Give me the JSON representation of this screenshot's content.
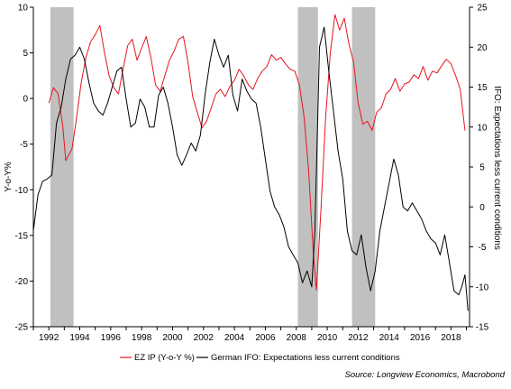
{
  "chart_data": {
    "type": "line",
    "title": "",
    "xlabel": "",
    "x_ticks": [
      "1992",
      "1994",
      "1996",
      "1998",
      "2000",
      "2002",
      "2004",
      "2006",
      "2008",
      "2010",
      "2012",
      "2014",
      "2016",
      "2018"
    ],
    "xlim": [
      1991.0,
      2019.2
    ],
    "left_axis": {
      "label": "Y-o-Y%",
      "ylim": [
        -25,
        10
      ],
      "ticks": [
        -25,
        -20,
        -15,
        -10,
        -5,
        0,
        5,
        10
      ]
    },
    "right_axis": {
      "label": "IFO: Expectations less current conditions",
      "ylim": [
        -15,
        25
      ],
      "ticks": [
        -15,
        -10,
        -5,
        0,
        5,
        10,
        15,
        20,
        25
      ]
    },
    "recessions": [
      [
        1992.1,
        1993.6
      ],
      [
        2008.1,
        2009.4
      ],
      [
        2011.6,
        2013.1
      ]
    ],
    "series": [
      {
        "name": "EZ IP (Y-o-Y %)",
        "axis": "left",
        "color": "#e8141c",
        "x": [
          1992.0,
          1992.3,
          1992.6,
          1992.9,
          1993.1,
          1993.5,
          1993.8,
          1994.1,
          1994.4,
          1994.7,
          1995.0,
          1995.3,
          1995.6,
          1995.9,
          1996.2,
          1996.5,
          1996.8,
          1997.1,
          1997.4,
          1997.7,
          1998.0,
          1998.3,
          1998.6,
          1998.9,
          1999.2,
          1999.5,
          1999.8,
          2000.1,
          2000.4,
          2000.7,
          2001.0,
          2001.3,
          2001.6,
          2001.9,
          2002.2,
          2002.5,
          2002.8,
          2003.1,
          2003.4,
          2003.7,
          2004.0,
          2004.3,
          2004.6,
          2004.9,
          2005.2,
          2005.5,
          2005.8,
          2006.1,
          2006.4,
          2006.7,
          2007.0,
          2007.3,
          2007.6,
          2007.9,
          2008.2,
          2008.5,
          2008.8,
          2009.1,
          2009.3,
          2009.6,
          2009.9,
          2010.2,
          2010.5,
          2010.8,
          2011.1,
          2011.4,
          2011.7,
          2012.0,
          2012.3,
          2012.6,
          2012.9,
          2013.2,
          2013.5,
          2013.8,
          2014.1,
          2014.4,
          2014.7,
          2015.0,
          2015.3,
          2015.6,
          2015.9,
          2016.2,
          2016.5,
          2016.8,
          2017.1,
          2017.4,
          2017.7,
          2018.0,
          2018.3,
          2018.6,
          2018.9
        ],
        "values": [
          -0.5,
          1.2,
          0.5,
          -3.0,
          -6.8,
          -5.5,
          -2.0,
          1.8,
          4.5,
          6.2,
          7.0,
          8.0,
          5.0,
          2.5,
          1.2,
          0.5,
          3.2,
          5.8,
          6.5,
          4.2,
          5.5,
          6.8,
          4.5,
          1.5,
          0.8,
          2.5,
          4.2,
          5.2,
          6.5,
          6.8,
          4.0,
          0.2,
          -1.5,
          -3.2,
          -2.5,
          -1.0,
          0.5,
          1.0,
          0.2,
          1.3,
          2.0,
          3.2,
          2.5,
          1.5,
          1.0,
          2.2,
          3.0,
          3.5,
          4.8,
          4.2,
          4.5,
          3.8,
          3.2,
          3.0,
          1.5,
          -2.0,
          -8.0,
          -17.0,
          -21.0,
          -12.0,
          -2.0,
          5.0,
          9.2,
          7.5,
          8.8,
          6.0,
          4.0,
          -0.5,
          -2.8,
          -2.5,
          -3.5,
          -1.5,
          -1.0,
          0.5,
          1.0,
          2.2,
          0.8,
          1.6,
          1.8,
          2.6,
          2.2,
          3.5,
          2.0,
          3.0,
          2.8,
          3.6,
          4.3,
          3.8,
          2.5,
          1.0,
          -3.5
        ]
      },
      {
        "name": "German IFO: Expectations less current conditions",
        "axis": "right",
        "color": "#000000",
        "x": [
          1991.0,
          1991.3,
          1991.6,
          1991.9,
          1992.2,
          1992.5,
          1992.8,
          1993.1,
          1993.4,
          1993.7,
          1994.0,
          1994.3,
          1994.6,
          1994.9,
          1995.2,
          1995.5,
          1995.8,
          1996.1,
          1996.4,
          1996.7,
          1997.0,
          1997.3,
          1997.6,
          1997.9,
          1998.2,
          1998.5,
          1998.8,
          1999.1,
          1999.4,
          1999.7,
          2000.0,
          2000.3,
          2000.6,
          2000.9,
          2001.2,
          2001.5,
          2001.8,
          2002.1,
          2002.4,
          2002.7,
          2003.0,
          2003.3,
          2003.6,
          2003.9,
          2004.2,
          2004.5,
          2004.8,
          2005.1,
          2005.4,
          2005.7,
          2006.0,
          2006.3,
          2006.6,
          2006.9,
          2007.2,
          2007.5,
          2007.8,
          2008.1,
          2008.4,
          2008.7,
          2009.0,
          2009.2,
          2009.5,
          2009.8,
          2010.1,
          2010.4,
          2010.7,
          2011.0,
          2011.3,
          2011.6,
          2011.9,
          2012.2,
          2012.5,
          2012.8,
          2013.1,
          2013.4,
          2013.7,
          2014.0,
          2014.3,
          2014.6,
          2014.9,
          2015.2,
          2015.5,
          2015.8,
          2016.1,
          2016.4,
          2016.7,
          2017.0,
          2017.3,
          2017.6,
          2017.9,
          2018.2,
          2018.5,
          2018.7,
          2018.9,
          2019.1
        ],
        "values": [
          -3.0,
          1.5,
          3.2,
          3.5,
          4.0,
          10.5,
          12.5,
          16.0,
          18.5,
          19.0,
          20.0,
          18.5,
          15.5,
          13.0,
          12.0,
          11.5,
          13.0,
          15.0,
          17.0,
          17.5,
          13.5,
          10.0,
          10.5,
          13.5,
          12.5,
          10.0,
          10.0,
          14.0,
          15.0,
          13.0,
          10.0,
          6.5,
          5.2,
          6.5,
          8.0,
          7.0,
          9.0,
          14.0,
          18.0,
          21.0,
          19.0,
          17.5,
          19.0,
          14.0,
          12.0,
          16.0,
          14.5,
          13.5,
          13.0,
          10.0,
          6.0,
          2.0,
          0.0,
          -1.0,
          -2.5,
          -5.0,
          -6.0,
          -7.0,
          -9.5,
          -8.0,
          -10.0,
          -3.0,
          20.0,
          22.5,
          17.0,
          12.0,
          7.0,
          3.5,
          -3.0,
          -5.5,
          -6.0,
          -3.5,
          -7.5,
          -10.5,
          -8.0,
          -3.0,
          0.0,
          3.0,
          6.0,
          4.0,
          0.0,
          -0.5,
          0.5,
          -0.5,
          -1.5,
          -3.0,
          -4.0,
          -4.5,
          -6.0,
          -3.5,
          -7.0,
          -10.5,
          -11.0,
          -10.0,
          -8.5,
          -13.0
        ]
      }
    ],
    "legend": {
      "position": "bottom-center",
      "entries": [
        "EZ IP (Y-o-Y %)",
        "German IFO: Expectations less current conditions"
      ]
    },
    "grid": false,
    "source": "Source: Longview Economics, Macrobond"
  },
  "colors": {
    "recession": "#c0c0c0",
    "ez_ip": "#e8141c",
    "ifo": "#000000"
  }
}
